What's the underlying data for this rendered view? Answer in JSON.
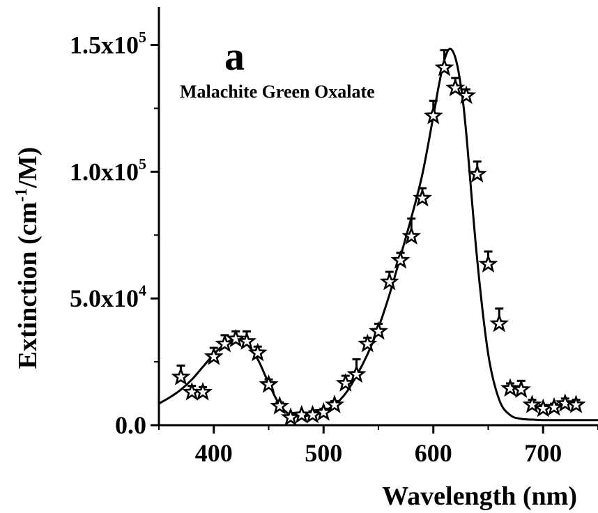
{
  "chart_data": {
    "type": "scatter",
    "title": "",
    "panel_label": "a",
    "annotation": "Malachite Green Oxalate",
    "xlabel": "Wavelength (nm)",
    "ylabel": {
      "prefix": "Extinction (cm",
      "sup": "-1",
      "suffix": "/M)"
    },
    "xlim": [
      350,
      750
    ],
    "ylim": [
      0,
      165000
    ],
    "x_ticks": [
      {
        "value": 400,
        "label": "400"
      },
      {
        "value": 500,
        "label": "500"
      },
      {
        "value": 600,
        "label": "600"
      },
      {
        "value": 700,
        "label": "700"
      }
    ],
    "y_ticks": [
      {
        "value": 0,
        "label": "0.0",
        "sup": ""
      },
      {
        "value": 50000,
        "label": "5.0x10",
        "sup": "4"
      },
      {
        "value": 100000,
        "label": "1.0x10",
        "sup": "5"
      },
      {
        "value": 150000,
        "label": "1.5x10",
        "sup": "5"
      }
    ],
    "grid": false,
    "series": [
      {
        "kind": "measured",
        "marker": "star",
        "points": [
          {
            "x": 370,
            "y": 19000,
            "err": 4500
          },
          {
            "x": 380,
            "y": 13000,
            "err": 2500
          },
          {
            "x": 390,
            "y": 13000,
            "err": 2000
          },
          {
            "x": 400,
            "y": 27000,
            "err": 3500
          },
          {
            "x": 410,
            "y": 32000,
            "err": 3500
          },
          {
            "x": 420,
            "y": 34000,
            "err": 3000
          },
          {
            "x": 430,
            "y": 33000,
            "err": 4000
          },
          {
            "x": 440,
            "y": 28500,
            "err": 2500
          },
          {
            "x": 450,
            "y": 16000,
            "err": 2000
          },
          {
            "x": 460,
            "y": 7500,
            "err": 1500
          },
          {
            "x": 470,
            "y": 3000,
            "err": 1500
          },
          {
            "x": 480,
            "y": 4000,
            "err": 1000
          },
          {
            "x": 490,
            "y": 4000,
            "err": 1500
          },
          {
            "x": 500,
            "y": 5000,
            "err": 1500
          },
          {
            "x": 510,
            "y": 8000,
            "err": 1500
          },
          {
            "x": 520,
            "y": 16500,
            "err": 3000
          },
          {
            "x": 530,
            "y": 20000,
            "err": 6000
          },
          {
            "x": 540,
            "y": 32000,
            "err": 2500
          },
          {
            "x": 550,
            "y": 37000,
            "err": 3000
          },
          {
            "x": 560,
            "y": 56500,
            "err": 4000
          },
          {
            "x": 570,
            "y": 65000,
            "err": 3000
          },
          {
            "x": 580,
            "y": 74500,
            "err": 7000
          },
          {
            "x": 590,
            "y": 89500,
            "err": 4000
          },
          {
            "x": 600,
            "y": 122000,
            "err": 6000
          },
          {
            "x": 610,
            "y": 141000,
            "err": 7000
          },
          {
            "x": 620,
            "y": 133000,
            "err": 4000
          },
          {
            "x": 630,
            "y": 130000,
            "err": 2500
          },
          {
            "x": 640,
            "y": 99000,
            "err": 5000
          },
          {
            "x": 650,
            "y": 63500,
            "err": 5000
          },
          {
            "x": 660,
            "y": 40000,
            "err": 6000
          },
          {
            "x": 670,
            "y": 14500,
            "err": 2000
          },
          {
            "x": 680,
            "y": 14000,
            "err": 3500
          },
          {
            "x": 690,
            "y": 8000,
            "err": 2000
          },
          {
            "x": 700,
            "y": 6500,
            "err": 1500
          },
          {
            "x": 710,
            "y": 7000,
            "err": 1500
          },
          {
            "x": 720,
            "y": 8500,
            "err": 2000
          },
          {
            "x": 730,
            "y": 8000,
            "err": 2000
          }
        ]
      },
      {
        "kind": "fit",
        "line": "solid",
        "x": [
          350,
          360,
          370,
          380,
          390,
          400,
          410,
          420,
          430,
          440,
          450,
          460,
          470,
          480,
          490,
          500,
          510,
          520,
          530,
          540,
          550,
          560,
          570,
          580,
          590,
          600,
          605,
          610,
          615,
          620,
          625,
          630,
          640,
          650,
          660,
          670,
          680,
          690,
          700,
          710,
          720,
          730,
          740,
          750
        ],
        "y": [
          8500,
          11000,
          14000,
          18000,
          23000,
          28000,
          32000,
          34000,
          32000,
          26000,
          16500,
          8000,
          4000,
          3500,
          4200,
          5500,
          8000,
          12500,
          19500,
          28000,
          38500,
          51500,
          66500,
          82000,
          99000,
          122000,
          134000,
          144000,
          148500,
          145000,
          134000,
          115000,
          65000,
          28000,
          10000,
          4000,
          2500,
          2200,
          2000,
          2000,
          2000,
          2000,
          2000,
          2000
        ]
      }
    ]
  }
}
